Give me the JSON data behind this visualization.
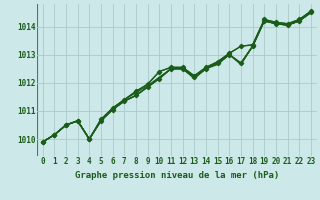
{
  "title": "Graphe pression niveau de la mer (hPa)",
  "background_color": "#cce8e8",
  "grid_color": "#aacaca",
  "line_color": "#1a5c1a",
  "xlim": [
    -0.5,
    23.5
  ],
  "ylim": [
    1009.4,
    1014.8
  ],
  "yticks": [
    1010,
    1011,
    1012,
    1013,
    1014
  ],
  "xticks": [
    0,
    1,
    2,
    3,
    4,
    5,
    6,
    7,
    8,
    9,
    10,
    11,
    12,
    13,
    14,
    15,
    16,
    17,
    18,
    19,
    20,
    21,
    22,
    23
  ],
  "series1": [
    1009.9,
    1010.15,
    1010.5,
    1010.65,
    1010.0,
    1010.65,
    1011.05,
    1011.35,
    1011.55,
    1011.85,
    1012.15,
    1012.5,
    1012.5,
    1012.2,
    1012.5,
    1012.7,
    1013.0,
    1012.7,
    1013.3,
    1014.2,
    1014.1,
    1014.05,
    1014.2,
    1014.5
  ],
  "series2": [
    1009.9,
    1010.15,
    1010.5,
    1010.65,
    1010.0,
    1010.7,
    1011.1,
    1011.4,
    1011.65,
    1011.9,
    1012.2,
    1012.5,
    1012.5,
    1012.15,
    1012.5,
    1012.65,
    1013.0,
    1012.65,
    1013.3,
    1014.2,
    1014.1,
    1014.05,
    1014.2,
    1014.5
  ],
  "series3": [
    1009.9,
    1010.15,
    1010.5,
    1010.65,
    1010.0,
    1010.7,
    1011.1,
    1011.4,
    1011.7,
    1011.95,
    1012.4,
    1012.55,
    1012.55,
    1012.25,
    1012.55,
    1012.75,
    1013.05,
    1013.3,
    1013.35,
    1014.25,
    1014.15,
    1014.1,
    1014.25,
    1014.55
  ],
  "series4": [
    1009.9,
    1010.15,
    1010.5,
    1010.65,
    1010.0,
    1010.65,
    1011.05,
    1011.35,
    1011.55,
    1011.85,
    1012.15,
    1012.5,
    1012.5,
    1012.2,
    1012.5,
    1012.7,
    1013.0,
    1012.7,
    1013.3,
    1014.2,
    1014.1,
    1014.05,
    1014.2,
    1014.5
  ],
  "marker1": [
    1009.9,
    1010.15,
    1010.5,
    1010.65,
    1010.0,
    1010.65,
    1011.05,
    1011.35,
    1011.55,
    1011.85,
    1012.15,
    1012.5,
    1012.5,
    1012.2,
    1012.5,
    1012.7,
    1013.0,
    1012.7,
    1013.3,
    1014.2,
    1014.1,
    1014.05,
    1014.2,
    1014.5
  ],
  "marker2": [
    1009.9,
    1010.15,
    1010.5,
    1010.65,
    1010.0,
    1010.7,
    1011.1,
    1011.4,
    1011.7,
    1011.95,
    1012.4,
    1012.55,
    1012.55,
    1012.25,
    1012.55,
    1012.75,
    1013.05,
    1013.3,
    1013.35,
    1014.25,
    1014.15,
    1014.1,
    1014.25,
    1014.55
  ],
  "tick_fontsize": 5.5,
  "label_fontsize": 6.5
}
